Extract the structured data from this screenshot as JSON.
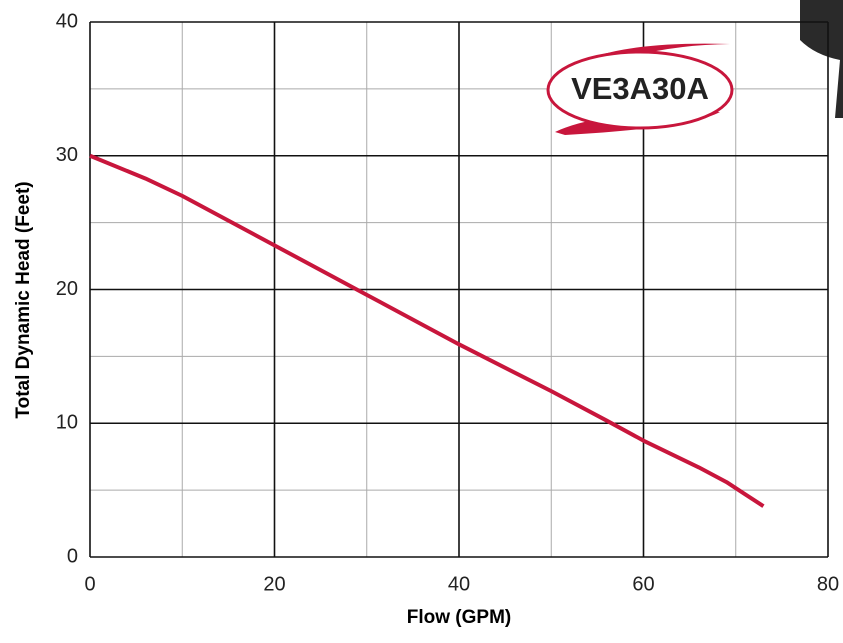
{
  "chart_data": {
    "type": "line",
    "x_label": "Flow (GPM)",
    "y_label": "Total Dynamic Head (Feet)",
    "badge": "VE3A30A",
    "series": [
      {
        "name": "VE3A30A",
        "color": "#c8163c",
        "x": [
          0,
          6,
          10,
          20,
          30,
          40,
          50,
          56,
          60,
          66,
          69,
          71,
          73
        ],
        "values": [
          30,
          28.3,
          27,
          23.3,
          19.6,
          15.9,
          12.4,
          10.2,
          8.7,
          6.7,
          5.6,
          4.7,
          3.8
        ]
      }
    ],
    "xlim": [
      0,
      80
    ],
    "xticks": [
      0,
      20,
      40,
      60,
      80
    ],
    "xminorticks": [
      10,
      30,
      50,
      70
    ],
    "ylim": [
      0,
      40
    ],
    "yticks": [
      0,
      10,
      20,
      30,
      40
    ],
    "yminorticks": [
      5,
      15,
      25,
      35
    ],
    "grid": true
  }
}
